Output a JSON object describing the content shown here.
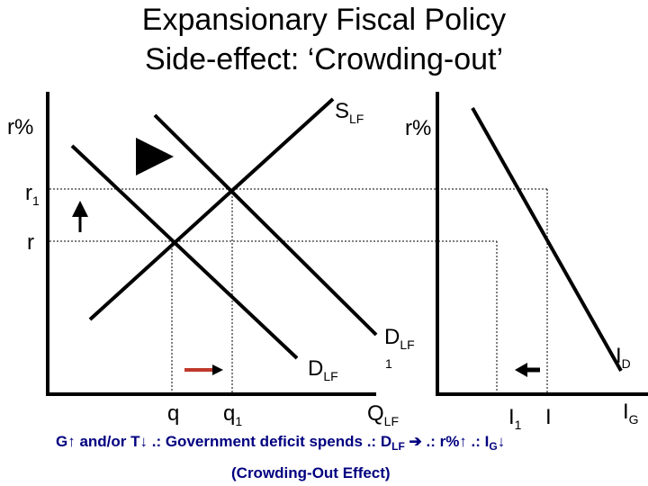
{
  "title": {
    "line1": "Expansionary Fiscal Policy",
    "line2": "Side-effect: ‘Crowding-out’"
  },
  "loanable_funds": {
    "y_axis_label": "r%",
    "r1_main": "r",
    "r1_sub": "1",
    "r_label": "r",
    "supply_main": "S",
    "supply_sub": "LF",
    "demand_main": "D",
    "demand_sub": "LF",
    "demand1_main": "D",
    "demand1_sub": "LF",
    "demand1_index": "1",
    "q_label": "q",
    "q1_main": "q",
    "q1_sub": "1",
    "x_axis_main": "Q",
    "x_axis_sub": "LF"
  },
  "investment": {
    "y_axis_label": "r%",
    "i1_main": "I",
    "i1_sub": "1",
    "i_label": "I",
    "demand_main": "I",
    "demand_sub": "D",
    "axis_main": "I",
    "axis_sub": "G"
  },
  "caption": {
    "line1_a": "G↑ and/or T↓ .: Government deficit spends .: D",
    "line1_sub": "LF",
    "line1_b": " ➔ .: r%↑ .: I",
    "line1_sub2": "G",
    "line1_c": "↓",
    "line2": "(Crowding-Out Effect)"
  },
  "colors": {
    "caption": "#000080",
    "ink": "#000000"
  }
}
